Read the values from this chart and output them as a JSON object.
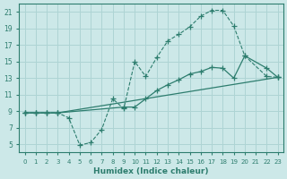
{
  "xlabel": "Humidex (Indice chaleur)",
  "background_color": "#cce8e8",
  "grid_color": "#aed4d4",
  "line_color": "#2d7d6e",
  "xlim": [
    -0.5,
    23.5
  ],
  "ylim": [
    4.0,
    22.0
  ],
  "xticks": [
    0,
    1,
    2,
    3,
    4,
    5,
    6,
    7,
    8,
    9,
    10,
    11,
    12,
    13,
    14,
    15,
    16,
    17,
    18,
    19,
    20,
    21,
    22,
    23
  ],
  "yticks": [
    5,
    7,
    9,
    11,
    13,
    15,
    17,
    19,
    21
  ],
  "line_top_x": [
    0,
    1,
    2,
    3,
    4,
    5,
    6,
    7,
    8,
    9,
    10,
    11,
    12,
    13,
    14,
    15,
    16,
    17,
    18,
    19,
    20,
    22,
    23
  ],
  "line_top_y": [
    8.8,
    8.8,
    8.8,
    8.8,
    8.2,
    4.9,
    5.2,
    6.8,
    10.5,
    9.3,
    15.0,
    13.2,
    15.5,
    17.5,
    18.3,
    19.2,
    20.5,
    21.2,
    21.2,
    19.3,
    15.7,
    13.2,
    13.1
  ],
  "line_mid_x": [
    0,
    1,
    2,
    3,
    9,
    10,
    11,
    12,
    13,
    14,
    15,
    16,
    17,
    18,
    19,
    20,
    22,
    23
  ],
  "line_mid_y": [
    8.8,
    8.8,
    8.8,
    8.8,
    9.5,
    9.5,
    10.5,
    11.5,
    12.2,
    12.8,
    13.5,
    13.8,
    14.3,
    14.2,
    13.0,
    15.7,
    14.2,
    13.1
  ],
  "line_bot_x": [
    0,
    1,
    2,
    3,
    23
  ],
  "line_bot_y": [
    8.8,
    8.8,
    8.8,
    8.8,
    13.1
  ]
}
